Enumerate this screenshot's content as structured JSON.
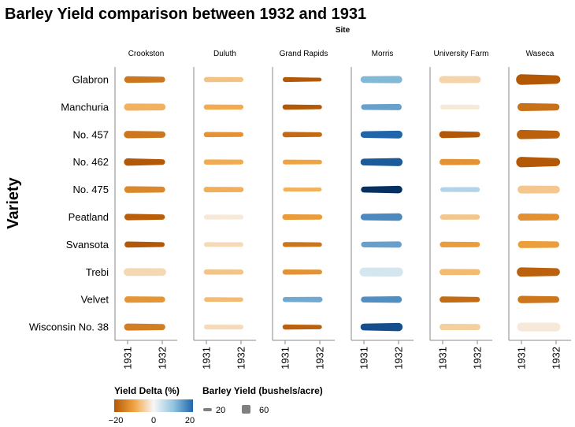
{
  "chart_data": {
    "type": "line",
    "title": "Barley Yield comparison between 1932 and 1931",
    "column_title": "Site",
    "ylabel": "Variety",
    "x_categories": [
      "1931",
      "1932"
    ],
    "sites": [
      "Crookston",
      "Duluth",
      "Grand Rapids",
      "Morris",
      "University Farm",
      "Waseca"
    ],
    "varieties": [
      "Glabron",
      "Manchuria",
      "No. 457",
      "No. 462",
      "No. 475",
      "Peatland",
      "Svansota",
      "Trebi",
      "Velvet",
      "Wisconsin No. 38"
    ],
    "color_scale": {
      "name": "Yield Delta (%)",
      "domain": [
        -20,
        20
      ],
      "ticks": [
        "−20",
        "0",
        "20"
      ]
    },
    "size_scale": {
      "name": "Barley Yield (bushels/acre)",
      "ticks": [
        20,
        60
      ]
    },
    "series": [
      {
        "site": "Crookston",
        "variety": "Glabron",
        "y1931": 44,
        "y1932": 37
      },
      {
        "site": "Crookston",
        "variety": "Manchuria",
        "y1931": 48,
        "y1932": 44
      },
      {
        "site": "Crookston",
        "variety": "No. 457",
        "y1931": 50,
        "y1932": 42
      },
      {
        "site": "Crookston",
        "variety": "No. 462",
        "y1931": 49,
        "y1932": 36
      },
      {
        "site": "Crookston",
        "variety": "No. 475",
        "y1931": 44,
        "y1932": 38
      },
      {
        "site": "Crookston",
        "variety": "Peatland",
        "y1931": 42,
        "y1932": 34
      },
      {
        "site": "Crookston",
        "variety": "Svansota",
        "y1931": 40,
        "y1932": 30
      },
      {
        "site": "Crookston",
        "variety": "Trebi",
        "y1931": 53,
        "y1932": 51
      },
      {
        "site": "Crookston",
        "variety": "Velvet",
        "y1931": 42,
        "y1932": 37
      },
      {
        "site": "Crookston",
        "variety": "Wisconsin No. 38",
        "y1931": 47,
        "y1932": 40
      },
      {
        "site": "Duluth",
        "variety": "Glabron",
        "y1931": 32,
        "y1932": 30
      },
      {
        "site": "Duluth",
        "variety": "Manchuria",
        "y1931": 33,
        "y1932": 30
      },
      {
        "site": "Duluth",
        "variety": "No. 457",
        "y1931": 33,
        "y1932": 29
      },
      {
        "site": "Duluth",
        "variety": "No. 462",
        "y1931": 33,
        "y1932": 30
      },
      {
        "site": "Duluth",
        "variety": "No. 475",
        "y1931": 35,
        "y1932": 32
      },
      {
        "site": "Duluth",
        "variety": "Peatland",
        "y1931": 30,
        "y1932": 29.5
      },
      {
        "site": "Duluth",
        "variety": "Svansota",
        "y1931": 29,
        "y1932": 28
      },
      {
        "site": "Duluth",
        "variety": "Trebi",
        "y1931": 33,
        "y1932": 31
      },
      {
        "site": "Duluth",
        "variety": "Velvet",
        "y1931": 28,
        "y1932": 26
      },
      {
        "site": "Duluth",
        "variety": "Wisconsin No. 38",
        "y1931": 30,
        "y1932": 29
      },
      {
        "site": "Grand Rapids",
        "variety": "Glabron",
        "y1931": 30,
        "y1932": 21
      },
      {
        "site": "Grand Rapids",
        "variety": "Manchuria",
        "y1931": 33,
        "y1932": 26
      },
      {
        "site": "Grand Rapids",
        "variety": "No. 457",
        "y1931": 34,
        "y1932": 28
      },
      {
        "site": "Grand Rapids",
        "variety": "No. 462",
        "y1931": 30,
        "y1932": 27
      },
      {
        "site": "Grand Rapids",
        "variety": "No. 475",
        "y1931": 24,
        "y1932": 22
      },
      {
        "site": "Grand Rapids",
        "variety": "Peatland",
        "y1931": 36,
        "y1932": 32
      },
      {
        "site": "Grand Rapids",
        "variety": "Svansota",
        "y1931": 31,
        "y1932": 26
      },
      {
        "site": "Grand Rapids",
        "variety": "Trebi",
        "y1931": 33,
        "y1932": 29
      },
      {
        "site": "Grand Rapids",
        "variety": "Velvet",
        "y1931": 31,
        "y1932": 35
      },
      {
        "site": "Grand Rapids",
        "variety": "Wisconsin No. 38",
        "y1931": 32,
        "y1932": 26
      },
      {
        "site": "Morris",
        "variety": "Glabron",
        "y1931": 44,
        "y1932": 49
      },
      {
        "site": "Morris",
        "variety": "Manchuria",
        "y1931": 36,
        "y1932": 41
      },
      {
        "site": "Morris",
        "variety": "No. 457",
        "y1931": 44,
        "y1932": 53
      },
      {
        "site": "Morris",
        "variety": "No. 462",
        "y1931": 45,
        "y1932": 55
      },
      {
        "site": "Morris",
        "variety": "No. 475",
        "y1931": 38,
        "y1932": 50
      },
      {
        "site": "Morris",
        "variety": "Peatland",
        "y1931": 43,
        "y1932": 50
      },
      {
        "site": "Morris",
        "variety": "Svansota",
        "y1931": 36,
        "y1932": 41
      },
      {
        "site": "Morris",
        "variety": "Trebi",
        "y1931": 60,
        "y1932": 62
      },
      {
        "site": "Morris",
        "variety": "Velvet",
        "y1931": 38,
        "y1932": 44
      },
      {
        "site": "Morris",
        "variety": "Wisconsin No. 38",
        "y1931": 45,
        "y1932": 56
      },
      {
        "site": "University Farm",
        "variety": "Glabron",
        "y1931": 48,
        "y1932": 46
      },
      {
        "site": "University Farm",
        "variety": "Manchuria",
        "y1931": 29,
        "y1932": 28.5
      },
      {
        "site": "University Farm",
        "variety": "No. 457",
        "y1931": 46,
        "y1932": 36
      },
      {
        "site": "University Farm",
        "variety": "No. 462",
        "y1931": 41,
        "y1932": 36
      },
      {
        "site": "University Farm",
        "variety": "No. 475",
        "y1931": 29,
        "y1932": 31
      },
      {
        "site": "University Farm",
        "variety": "Peatland",
        "y1931": 34,
        "y1932": 32
      },
      {
        "site": "University Farm",
        "variety": "Svansota",
        "y1931": 37,
        "y1932": 33
      },
      {
        "site": "University Farm",
        "variety": "Trebi",
        "y1931": 41,
        "y1932": 38
      },
      {
        "site": "University Farm",
        "variety": "Velvet",
        "y1931": 40,
        "y1932": 33
      },
      {
        "site": "University Farm",
        "variety": "Wisconsin No. 38",
        "y1931": 42,
        "y1932": 40
      },
      {
        "site": "Waseca",
        "variety": "Glabron",
        "y1931": 75,
        "y1932": 58
      },
      {
        "site": "Waseca",
        "variety": "Manchuria",
        "y1931": 54,
        "y1932": 45
      },
      {
        "site": "Waseca",
        "variety": "No. 457",
        "y1931": 64,
        "y1932": 52
      },
      {
        "site": "Waseca",
        "variety": "No. 462",
        "y1931": 73,
        "y1932": 55
      },
      {
        "site": "Waseca",
        "variety": "No. 475",
        "y1931": 53,
        "y1932": 50
      },
      {
        "site": "Waseca",
        "variety": "Peatland",
        "y1931": 48,
        "y1932": 42
      },
      {
        "site": "Waseca",
        "variety": "Svansota",
        "y1931": 47,
        "y1932": 42
      },
      {
        "site": "Waseca",
        "variety": "Trebi",
        "y1931": 64,
        "y1932": 52
      },
      {
        "site": "Waseca",
        "variety": "Velvet",
        "y1931": 50,
        "y1932": 42
      },
      {
        "site": "Waseca",
        "variety": "Wisconsin No. 38",
        "y1931": 60,
        "y1932": 59
      }
    ]
  }
}
